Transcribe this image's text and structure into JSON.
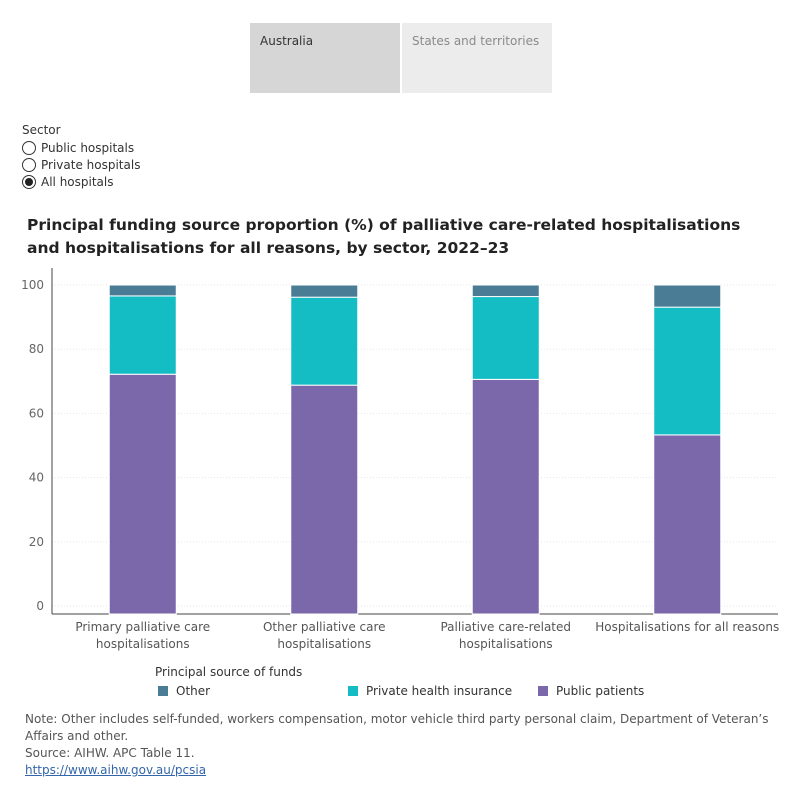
{
  "tabs": [
    {
      "label": "Australia",
      "active": true
    },
    {
      "label": "States and territories",
      "active": false
    }
  ],
  "filter": {
    "title": "Sector",
    "options": [
      {
        "label": "Public hospitals",
        "checked": false
      },
      {
        "label": "Private hospitals",
        "checked": false
      },
      {
        "label": "All hospitals",
        "checked": true
      }
    ]
  },
  "chart_data": {
    "type": "bar",
    "stacked": true,
    "title": "Principal funding source proportion (%) of palliative care-related hospitalisations and hospitalisations for all reasons, by sector, 2022–23",
    "xlabel": "",
    "ylabel": "",
    "ylim": [
      0,
      100
    ],
    "yticks": [
      0,
      20,
      40,
      60,
      80,
      100
    ],
    "grid": true,
    "categories": [
      [
        "Primary palliative care",
        "hospitalisations"
      ],
      [
        "Other palliative care",
        "hospitalisations"
      ],
      [
        "Palliative care-related",
        "hospitalisations"
      ],
      [
        "Hospitalisations for all reasons"
      ]
    ],
    "series": [
      {
        "name": "Public patients",
        "color": "#7b68ab",
        "values": [
          72.2,
          68.8,
          70.6,
          53.3
        ]
      },
      {
        "name": "Private health insurance",
        "color": "#14bcc4",
        "values": [
          24.4,
          27.4,
          25.8,
          39.8
        ]
      },
      {
        "name": "Other",
        "color": "#4a7c96",
        "values": [
          3.4,
          3.8,
          3.6,
          6.9
        ]
      }
    ],
    "legend": {
      "title": "Principal source of funds",
      "placement": "bottom",
      "items": [
        {
          "name": "Other",
          "color": "#4a7c96"
        },
        {
          "name": "Private health insurance",
          "color": "#14bcc4"
        },
        {
          "name": "Public patients",
          "color": "#7b68ab"
        }
      ]
    }
  },
  "notes": {
    "note": "Note: Other includes self-funded, workers compensation, motor vehicle third party personal claim, Department of Veteran’s Affairs and other.",
    "source": "Source: AIHW. APC Table  11.",
    "link": "https://www.aihw.gov.au/pcsia"
  }
}
